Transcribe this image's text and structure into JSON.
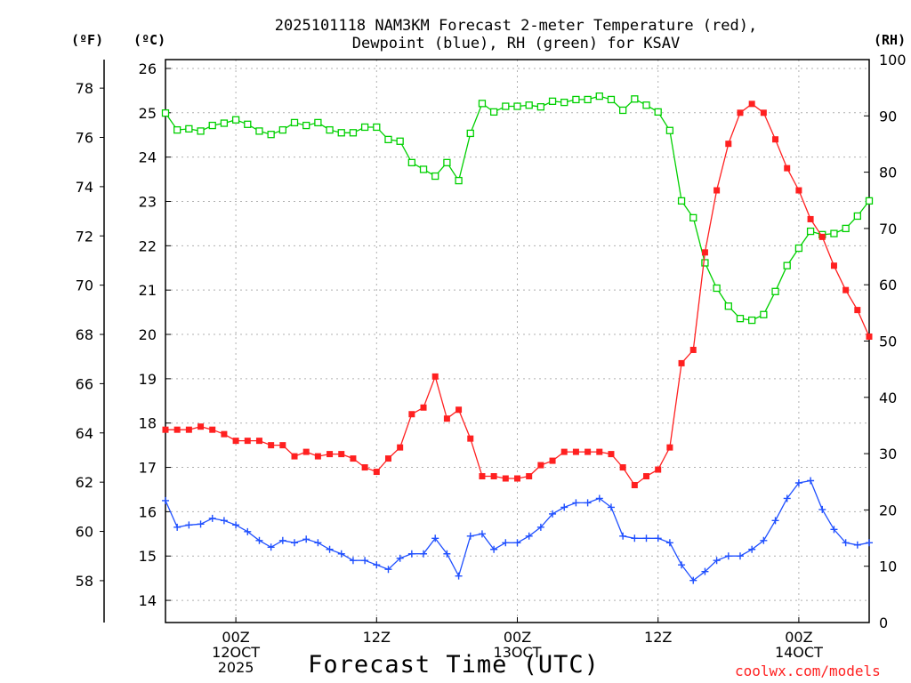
{
  "chart_data": {
    "type": "line",
    "title": "2025101118 NAM3KM Forecast 2-meter Temperature (red),",
    "subtitle": "Dewpoint (blue), RH (green) for KSAV",
    "xlabel": "Forecast Time (UTC)",
    "credit": "coolwx.com/models",
    "unit_labels": {
      "fahrenheit": "(ºF)",
      "celsius": "(ºC)",
      "rh": "(RH)"
    },
    "x_start_hour": 18,
    "x_step_hours": 1,
    "xlim_hours": [
      18,
      78
    ],
    "x_ticks": [
      {
        "hour": 24,
        "lines": [
          "00Z",
          "12OCT",
          "2025"
        ]
      },
      {
        "hour": 36,
        "lines": [
          "12Z"
        ]
      },
      {
        "hour": 48,
        "lines": [
          "00Z",
          "13OCT"
        ]
      },
      {
        "hour": 60,
        "lines": [
          "12Z"
        ]
      },
      {
        "hour": 72,
        "lines": [
          "00Z",
          "14OCT"
        ]
      }
    ],
    "axes": {
      "celsius": {
        "range": [
          13.5,
          26.2
        ],
        "ticks": [
          14,
          15,
          16,
          17,
          18,
          19,
          20,
          21,
          22,
          23,
          24,
          25,
          26
        ]
      },
      "fahrenheit": {
        "ticks": [
          58,
          60,
          62,
          64,
          66,
          68,
          70,
          72,
          74,
          76,
          78
        ]
      },
      "rh": {
        "range": [
          0,
          100
        ],
        "ticks": [
          0,
          10,
          20,
          30,
          40,
          50,
          60,
          70,
          80,
          90,
          100
        ]
      }
    },
    "grid": true,
    "series": [
      {
        "name": "2-meter Temperature",
        "unit": "C",
        "color": "#ff2020",
        "marker": "filled-square",
        "values": [
          17.85,
          17.85,
          17.85,
          17.92,
          17.85,
          17.75,
          17.6,
          17.6,
          17.6,
          17.5,
          17.5,
          17.25,
          17.35,
          17.25,
          17.3,
          17.3,
          17.2,
          17.0,
          16.9,
          17.2,
          17.45,
          18.2,
          18.35,
          19.05,
          18.1,
          18.3,
          17.65,
          16.8,
          16.8,
          16.75,
          16.75,
          16.8,
          17.05,
          17.15,
          17.35,
          17.35,
          17.35,
          17.35,
          17.3,
          17.0,
          16.6,
          16.8,
          16.95,
          17.45,
          19.35,
          19.65,
          21.85,
          23.25,
          24.3,
          25.0,
          25.2,
          25.0,
          24.4,
          23.75,
          23.25,
          22.6,
          22.2,
          21.55,
          21.0,
          20.55,
          19.95
        ]
      },
      {
        "name": "Dewpoint",
        "unit": "C",
        "color": "#2050ff",
        "marker": "plus",
        "values": [
          16.25,
          15.65,
          15.7,
          15.72,
          15.85,
          15.8,
          15.7,
          15.55,
          15.35,
          15.2,
          15.35,
          15.3,
          15.38,
          15.3,
          15.15,
          15.05,
          14.9,
          14.9,
          14.8,
          14.7,
          14.95,
          15.05,
          15.05,
          15.4,
          15.05,
          14.55,
          15.45,
          15.5,
          15.15,
          15.3,
          15.3,
          15.45,
          15.65,
          15.95,
          16.1,
          16.2,
          16.2,
          16.3,
          16.1,
          15.45,
          15.4,
          15.4,
          15.4,
          15.3,
          14.8,
          14.45,
          14.65,
          14.9,
          15.0,
          15.0,
          15.15,
          15.35,
          15.8,
          16.3,
          16.65,
          16.7,
          16.05,
          15.6,
          15.3,
          15.25,
          15.3
        ]
      },
      {
        "name": "RH",
        "unit": "%",
        "color": "#00d000",
        "marker": "open-square",
        "values": [
          90.5,
          87.5,
          87.7,
          87.3,
          88.3,
          88.7,
          89.3,
          88.5,
          87.3,
          86.7,
          87.5,
          88.8,
          88.3,
          88.8,
          87.5,
          87.0,
          87.0,
          88.0,
          88.0,
          85.8,
          85.5,
          81.7,
          80.5,
          79.3,
          81.7,
          78.5,
          86.9,
          92.2,
          90.7,
          91.7,
          91.7,
          91.9,
          91.6,
          92.6,
          92.4,
          92.9,
          92.9,
          93.5,
          92.9,
          91.0,
          93.0,
          91.9,
          90.7,
          87.4,
          74.9,
          71.9,
          63.9,
          59.4,
          56.2,
          54.0,
          53.7,
          54.7,
          58.8,
          63.4,
          66.5,
          69.5,
          68.9,
          69.1,
          70.0,
          72.2,
          74.9
        ]
      }
    ]
  }
}
